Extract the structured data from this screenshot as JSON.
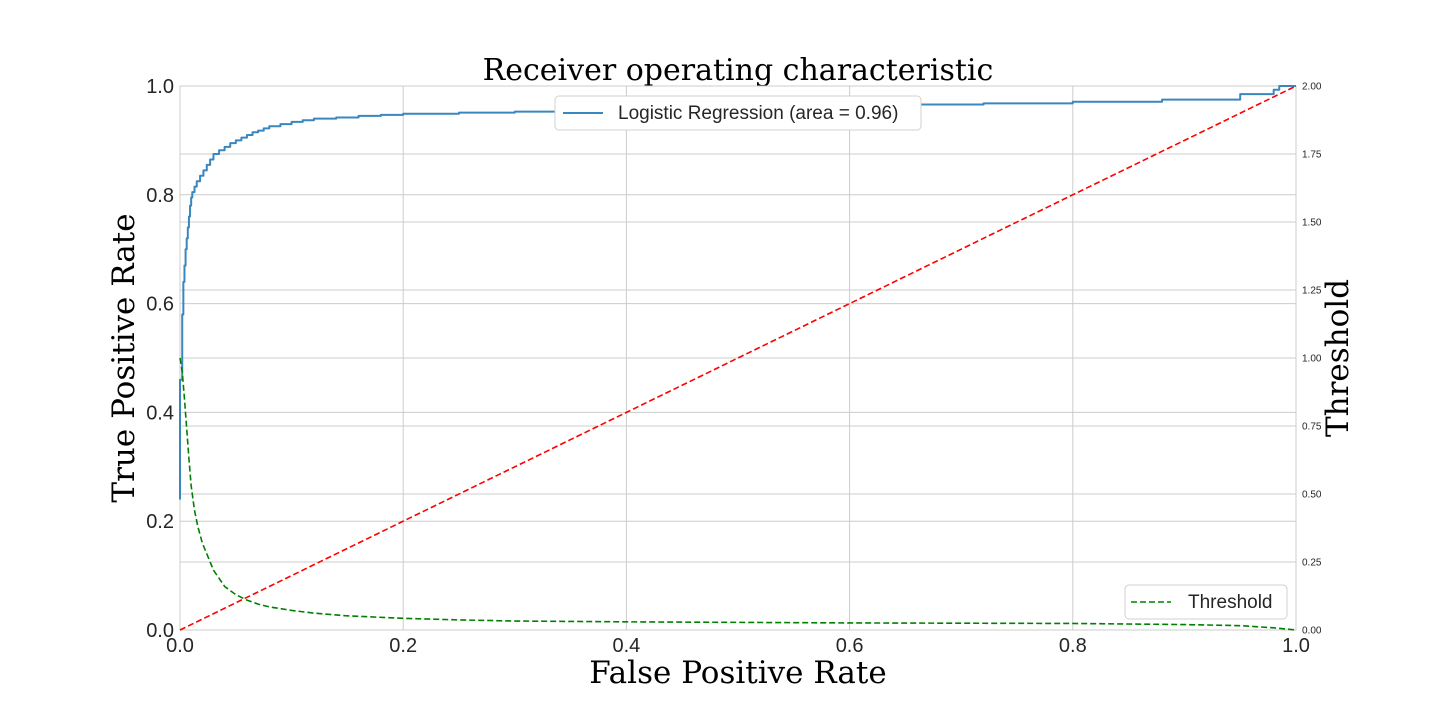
{
  "chart_data": {
    "type": "line",
    "title": "Receiver operating characteristic",
    "xlabel": "False Positive Rate",
    "ylabel": "True Positive Rate",
    "y2label": "Threshold",
    "xlim": [
      0.0,
      1.0
    ],
    "ylim": [
      0.0,
      1.0
    ],
    "y2lim": [
      0.0,
      2.0
    ],
    "x_ticks": [
      "0.0",
      "0.2",
      "0.4",
      "0.6",
      "0.8",
      "1.0"
    ],
    "y_ticks": [
      "0.0",
      "0.2",
      "0.4",
      "0.6",
      "0.8",
      "1.0"
    ],
    "y2_ticks": [
      "0.00",
      "0.25",
      "0.50",
      "0.75",
      "1.00",
      "1.25",
      "1.50",
      "1.75",
      "2.00"
    ],
    "grid": true,
    "colors": {
      "roc": "#3a87bf",
      "baseline": "#ff0000",
      "threshold": "#008000",
      "y2label": "#008000"
    },
    "series": [
      {
        "name": "Logistic Regression (area = 0.96)",
        "axis": "left",
        "style": "solid",
        "x": [
          0.0,
          0.0,
          0.002,
          0.003,
          0.004,
          0.005,
          0.006,
          0.007,
          0.008,
          0.009,
          0.01,
          0.011,
          0.013,
          0.015,
          0.018,
          0.021,
          0.024,
          0.027,
          0.03,
          0.035,
          0.04,
          0.045,
          0.05,
          0.055,
          0.06,
          0.065,
          0.07,
          0.075,
          0.08,
          0.09,
          0.1,
          0.11,
          0.12,
          0.14,
          0.16,
          0.18,
          0.2,
          0.25,
          0.3,
          0.35,
          0.4,
          0.45,
          0.5,
          0.55,
          0.6,
          0.65,
          0.72,
          0.8,
          0.88,
          0.95,
          0.98,
          0.985,
          1.0
        ],
        "y": [
          0.24,
          0.46,
          0.58,
          0.64,
          0.67,
          0.7,
          0.72,
          0.74,
          0.76,
          0.78,
          0.795,
          0.805,
          0.815,
          0.825,
          0.835,
          0.845,
          0.855,
          0.865,
          0.875,
          0.882,
          0.888,
          0.895,
          0.9,
          0.905,
          0.91,
          0.915,
          0.918,
          0.922,
          0.926,
          0.93,
          0.934,
          0.937,
          0.94,
          0.942,
          0.945,
          0.947,
          0.949,
          0.951,
          0.953,
          0.955,
          0.957,
          0.959,
          0.961,
          0.963,
          0.965,
          0.966,
          0.968,
          0.971,
          0.975,
          0.985,
          0.993,
          1.0,
          1.0
        ]
      },
      {
        "name": "",
        "axis": "left",
        "style": "dashed",
        "x": [
          0.0,
          1.0
        ],
        "y": [
          0.0,
          1.0
        ]
      },
      {
        "name": "Threshold",
        "axis": "right",
        "style": "dashed",
        "x": [
          0.0,
          0.002,
          0.004,
          0.006,
          0.008,
          0.01,
          0.013,
          0.016,
          0.02,
          0.025,
          0.03,
          0.035,
          0.04,
          0.05,
          0.06,
          0.07,
          0.08,
          0.1,
          0.12,
          0.15,
          0.2,
          0.25,
          0.3,
          0.4,
          0.5,
          0.6,
          0.7,
          0.8,
          0.9,
          0.95,
          0.98,
          1.0
        ],
        "y": [
          1.0,
          0.95,
          0.85,
          0.74,
          0.63,
          0.53,
          0.44,
          0.38,
          0.32,
          0.27,
          0.22,
          0.19,
          0.16,
          0.13,
          0.11,
          0.095,
          0.085,
          0.072,
          0.062,
          0.052,
          0.043,
          0.037,
          0.033,
          0.03,
          0.028,
          0.026,
          0.025,
          0.024,
          0.02,
          0.016,
          0.008,
          0.0
        ]
      }
    ],
    "legends": [
      {
        "placement": "upper center",
        "entries": [
          "Logistic Regression (area = 0.96)"
        ]
      },
      {
        "placement": "lower right",
        "entries": [
          "Threshold"
        ]
      }
    ]
  }
}
